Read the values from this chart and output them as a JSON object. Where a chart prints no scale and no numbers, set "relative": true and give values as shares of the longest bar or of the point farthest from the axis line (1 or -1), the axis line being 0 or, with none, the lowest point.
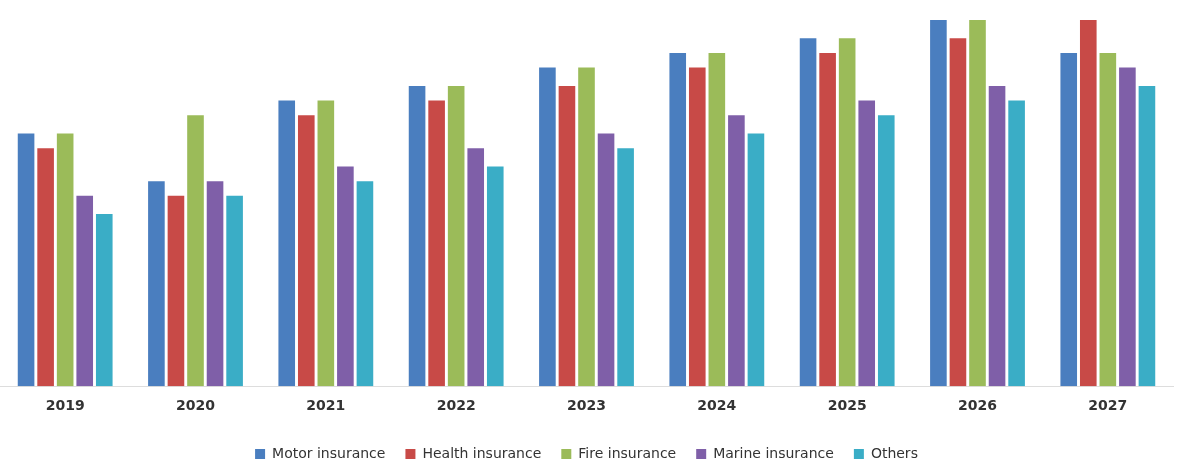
{
  "chart_data": {
    "type": "bar",
    "relative": true,
    "categories": [
      "2019",
      "2020",
      "2021",
      "2022",
      "2023",
      "2024",
      "2025",
      "2026",
      "2027"
    ],
    "series": [
      {
        "name": "Motor insurance",
        "color": "#4a7ebf",
        "values": [
          0.69,
          0.56,
          0.78,
          0.82,
          0.87,
          0.91,
          0.95,
          1,
          0.91
        ]
      },
      {
        "name": "Health insurance",
        "color": "#c84a47",
        "values": [
          0.65,
          0.52,
          0.74,
          0.78,
          0.82,
          0.87,
          0.91,
          0.95,
          1
        ]
      },
      {
        "name": "Fire insurance",
        "color": "#9bbb59",
        "values": [
          0.69,
          0.74,
          0.78,
          0.82,
          0.87,
          0.91,
          0.95,
          1,
          0.91
        ]
      },
      {
        "name": "Marine insurance",
        "color": "#7f5fa8",
        "values": [
          0.52,
          0.56,
          0.6,
          0.65,
          0.69,
          0.74,
          0.78,
          0.82,
          0.87
        ]
      },
      {
        "name": "Others",
        "color": "#3aadc6",
        "values": [
          0.47,
          0.52,
          0.56,
          0.6,
          0.65,
          0.69,
          0.74,
          0.78,
          0.82
        ]
      }
    ],
    "grid": false,
    "legend": "bottom"
  }
}
